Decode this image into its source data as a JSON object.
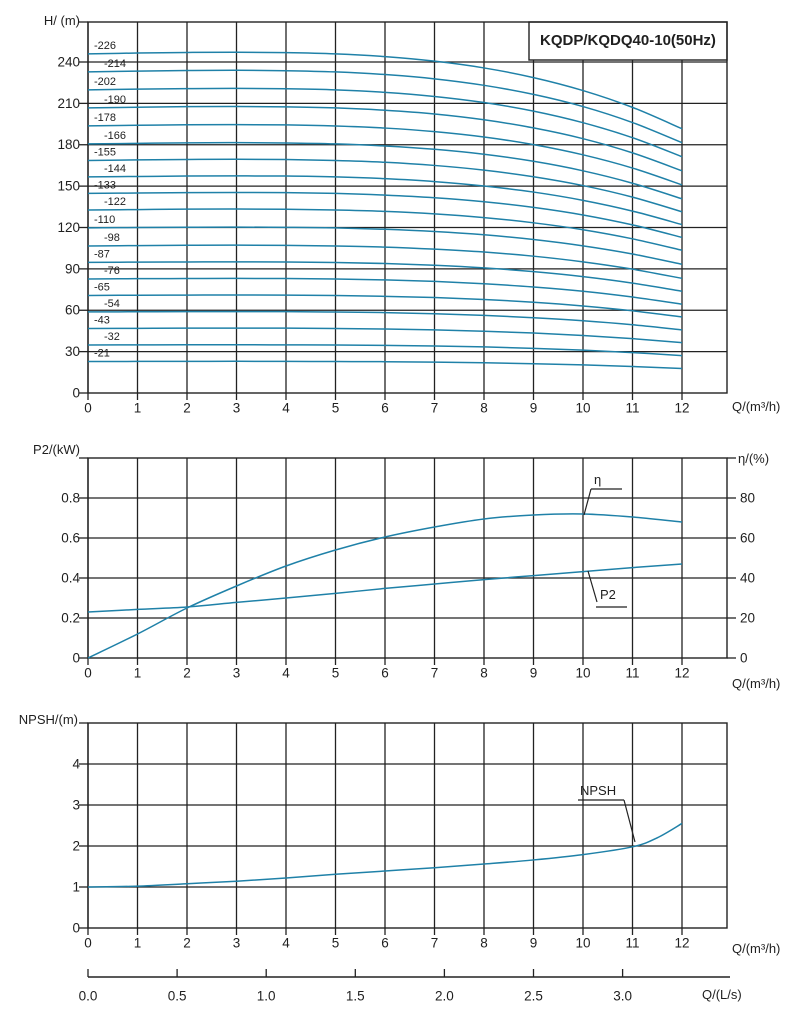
{
  "title": "KQDP/KQDQ40-10(50Hz)",
  "colors": {
    "curve": "#1f81a8",
    "grid": "#222222",
    "text": "#1f1f1f",
    "background": "#ffffff"
  },
  "chart_data": [
    {
      "id": "head-vs-flow",
      "type": "line",
      "title": "KQDP/KQDQ40-10(50Hz)",
      "xlabel": "Q/(m³/h)",
      "ylabel": "H/ (m)",
      "xlim": [
        0,
        12
      ],
      "ylim": [
        0,
        269
      ],
      "grid": true,
      "x_ticks": [
        0,
        1,
        2,
        3,
        4,
        5,
        6,
        7,
        8,
        9,
        10,
        11,
        12
      ],
      "y_ticks": [
        0,
        30,
        60,
        90,
        120,
        150,
        180,
        210,
        240
      ],
      "x": [
        0,
        1,
        2,
        3,
        4,
        5,
        6,
        7,
        8,
        9,
        10,
        11,
        12
      ],
      "series": [
        {
          "name": "-226",
          "rating": 226,
          "values": [
            245.9,
            246.5,
            246.9,
            247.1,
            246.8,
            245.9,
            243.9,
            240.6,
            235.7,
            228.7,
            219.3,
            207.1,
            191.6
          ]
        },
        {
          "name": "-214",
          "rating": 214,
          "values": [
            232.8,
            233.4,
            233.8,
            234.0,
            233.7,
            232.8,
            230.9,
            227.8,
            223.1,
            216.5,
            207.7,
            196.1,
            181.5
          ]
        },
        {
          "name": "-202",
          "rating": 202,
          "values": [
            219.8,
            220.3,
            220.7,
            220.9,
            220.6,
            219.8,
            218.0,
            215.0,
            210.6,
            204.4,
            196.0,
            185.1,
            171.3
          ]
        },
        {
          "name": "-190",
          "rating": 190,
          "values": [
            206.7,
            207.2,
            207.6,
            207.7,
            207.5,
            206.7,
            205.0,
            202.3,
            198.1,
            192.2,
            184.4,
            174.1,
            161.1
          ]
        },
        {
          "name": "-178",
          "rating": 178,
          "values": [
            193.7,
            194.1,
            194.5,
            194.6,
            194.4,
            193.6,
            192.1,
            189.5,
            185.6,
            180.1,
            172.7,
            163.1,
            150.9
          ]
        },
        {
          "name": "-166",
          "rating": 166,
          "values": [
            180.6,
            181.0,
            181.4,
            181.5,
            181.3,
            180.6,
            179.1,
            176.7,
            173.1,
            168.0,
            161.1,
            152.1,
            140.8
          ]
        },
        {
          "name": "-155",
          "rating": 155,
          "values": [
            168.6,
            169.0,
            169.3,
            169.5,
            169.3,
            168.6,
            167.3,
            165.0,
            161.6,
            156.8,
            150.4,
            142.0,
            131.4
          ]
        },
        {
          "name": "-144",
          "rating": 144,
          "values": [
            156.7,
            157.0,
            157.3,
            157.4,
            157.3,
            156.7,
            155.4,
            153.3,
            150.1,
            145.7,
            139.7,
            131.9,
            122.1
          ]
        },
        {
          "name": "-133",
          "rating": 133,
          "values": [
            144.7,
            145.0,
            145.3,
            145.4,
            145.3,
            144.7,
            143.5,
            141.6,
            138.7,
            134.6,
            129.1,
            121.9,
            112.8
          ]
        },
        {
          "name": "-122",
          "rating": 122,
          "values": [
            132.7,
            133.0,
            133.3,
            133.4,
            133.2,
            132.7,
            131.7,
            129.9,
            127.2,
            123.4,
            118.4,
            111.8,
            103.5
          ]
        },
        {
          "name": "-110",
          "rating": 110,
          "values": [
            119.7,
            120.0,
            120.2,
            120.3,
            120.1,
            119.7,
            118.7,
            117.1,
            114.7,
            111.3,
            106.7,
            100.8,
            93.3
          ]
        },
        {
          "name": "-98",
          "rating": 98,
          "values": [
            106.6,
            106.9,
            107.1,
            107.2,
            107.0,
            106.6,
            105.8,
            104.3,
            102.2,
            99.2,
            95.1,
            89.8,
            83.1
          ]
        },
        {
          "name": "-87",
          "rating": 87,
          "values": [
            94.7,
            94.9,
            95.0,
            95.1,
            95.0,
            94.6,
            93.9,
            92.6,
            90.7,
            88.0,
            84.4,
            79.7,
            73.8
          ]
        },
        {
          "name": "-76",
          "rating": 76,
          "values": [
            82.7,
            82.9,
            83.0,
            83.1,
            83.0,
            82.7,
            82.0,
            80.9,
            79.2,
            76.9,
            73.8,
            69.6,
            64.4
          ]
        },
        {
          "name": "-65",
          "rating": 65,
          "values": [
            70.7,
            70.9,
            71.0,
            71.1,
            71.0,
            70.7,
            70.1,
            69.2,
            67.8,
            65.8,
            63.1,
            59.6,
            55.1
          ]
        },
        {
          "name": "-54",
          "rating": 54,
          "values": [
            58.8,
            58.9,
            59.0,
            59.0,
            59.0,
            58.7,
            58.3,
            57.5,
            56.3,
            54.6,
            52.4,
            49.5,
            45.8
          ]
        },
        {
          "name": "-43",
          "rating": 43,
          "values": [
            46.8,
            46.9,
            47.0,
            47.0,
            47.0,
            46.8,
            46.4,
            45.8,
            44.8,
            43.5,
            41.7,
            39.4,
            36.5
          ]
        },
        {
          "name": "-32",
          "rating": 32,
          "values": [
            34.8,
            34.9,
            35.0,
            35.0,
            34.9,
            34.8,
            34.5,
            34.1,
            33.4,
            32.4,
            31.1,
            29.3,
            27.1
          ]
        },
        {
          "name": "-21",
          "rating": 21,
          "values": [
            22.8,
            22.9,
            22.9,
            23.0,
            22.9,
            22.8,
            22.7,
            22.4,
            21.9,
            21.2,
            20.4,
            19.2,
            17.8
          ]
        }
      ]
    },
    {
      "id": "power-efficiency-vs-flow",
      "type": "line",
      "xlabel": "Q/(m³/h)",
      "ylabel_left": "P2/(kW)",
      "ylabel_right": "η/(%)",
      "xlim": [
        0,
        12
      ],
      "ylim_left": [
        0,
        1.0
      ],
      "ylim_right": [
        0,
        100
      ],
      "grid": true,
      "x_ticks": [
        0,
        1,
        2,
        3,
        4,
        5,
        6,
        7,
        8,
        9,
        10,
        11,
        12
      ],
      "left_ticks": [
        "0",
        "0.2",
        "0.4",
        "0.6",
        "0.8"
      ],
      "right_ticks": [
        "0",
        "20",
        "40",
        "60",
        "80"
      ],
      "series": [
        {
          "name": "η",
          "axis": "right",
          "x": [
            0,
            1,
            2,
            3,
            4,
            5,
            6,
            7,
            8,
            9,
            10,
            11,
            12
          ],
          "values": [
            0,
            12,
            25,
            36,
            46,
            54,
            60.5,
            65.5,
            69.5,
            71.5,
            72,
            70.5,
            68
          ]
        },
        {
          "name": "P2",
          "axis": "left",
          "x": [
            0,
            1,
            2,
            3,
            4,
            5,
            6,
            7,
            8,
            9,
            10,
            11,
            12
          ],
          "values": [
            0.23,
            0.243,
            0.255,
            0.278,
            0.3,
            0.323,
            0.348,
            0.37,
            0.392,
            0.412,
            0.432,
            0.452,
            0.47
          ]
        }
      ]
    },
    {
      "id": "npsh-vs-flow",
      "type": "line",
      "xlabel": "Q/(m³/h)",
      "ylabel": "NPSH/(m)",
      "xlim": [
        0,
        12
      ],
      "ylim": [
        0,
        5
      ],
      "grid": true,
      "x_ticks": [
        0,
        1,
        2,
        3,
        4,
        5,
        6,
        7,
        8,
        9,
        10,
        11,
        12
      ],
      "y_ticks": [
        0,
        1,
        2,
        3,
        4
      ],
      "series": [
        {
          "name": "NPSH",
          "x": [
            0,
            1,
            2,
            3,
            4,
            5,
            6,
            7,
            8,
            9,
            10,
            11,
            11.5,
            12
          ],
          "values": [
            1.0,
            1.02,
            1.08,
            1.14,
            1.22,
            1.31,
            1.39,
            1.47,
            1.56,
            1.66,
            1.79,
            1.98,
            2.2,
            2.55
          ]
        }
      ],
      "secondary_x_axis": {
        "label": "Q/(L/s)",
        "ticks": [
          "0.0",
          "0.5",
          "1.0",
          "1.5",
          "2.0",
          "2.5",
          "3.0"
        ],
        "m3h_per_Ls": 3.6
      }
    }
  ]
}
